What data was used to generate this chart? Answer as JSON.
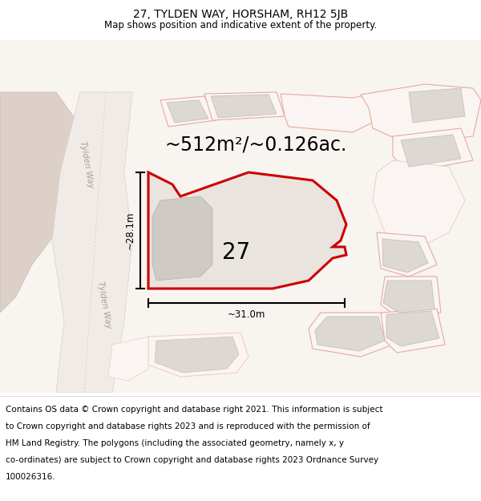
{
  "title": "27, TYLDEN WAY, HORSHAM, RH12 5JB",
  "subtitle": "Map shows position and indicative extent of the property.",
  "area_label": "~512m²/~0.126ac.",
  "number_label": "27",
  "dim_width": "~31.0m",
  "dim_height": "~28.1m",
  "road_label": "Tylden Way",
  "footer_lines": [
    "Contains OS data © Crown copyright and database right 2021. This information is subject",
    "to Crown copyright and database rights 2023 and is reproduced with the permission of",
    "HM Land Registry. The polygons (including the associated geometry, namely x, y",
    "co-ordinates) are subject to Crown copyright and database rights 2023 Ordnance Survey",
    "100026316."
  ],
  "map_bg": "#f8f4f1",
  "parcel_fill": "#faf5f2",
  "parcel_edge": "#e8a8a0",
  "parcel_edge_light": "#f0c8c0",
  "building_fill": "#ddd8d2",
  "building_edge": "#c8c0b8",
  "road_fill": "#ede8e4",
  "road_edge": "#d0c8c0",
  "dark_area_fill": "#ddd0c8",
  "prop_fill": "#eae4de",
  "prop_edge": "#cc0000",
  "inner_bld_fill": "#d0cac4",
  "inner_bld_edge": "#b8b0a8",
  "title_fontsize": 10,
  "subtitle_fontsize": 8.5,
  "area_fontsize": 17,
  "number_fontsize": 20,
  "dim_fontsize": 8.5,
  "road_label_fontsize": 7.5,
  "footer_fontsize": 7.5
}
